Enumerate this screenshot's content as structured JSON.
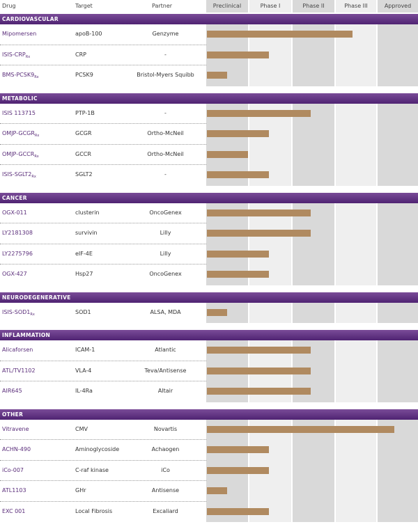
{
  "header": {
    "drug": "Drug",
    "target": "Target",
    "partner": "Partner"
  },
  "colors": {
    "section": "#5e2f80",
    "bar": "#b08a60",
    "drug_text": "#5a2d7a",
    "col_dark": "#d9d9d9",
    "col_light": "#efefef"
  },
  "chart_data": {
    "type": "bar",
    "orientation": "horizontal",
    "value_unit": "phases completed (0 = start of Preclinical, 5 = end of Approved)",
    "phases": [
      "Preclinical",
      "Phase I",
      "Phase II",
      "Phase III",
      "Approved"
    ],
    "sections": [
      {
        "title": "CARDIOVASCULAR",
        "rows": [
          {
            "drug": "Mipomersen",
            "sub": "",
            "target": "apoB-100",
            "partner": "Genzyme",
            "value": 3.5
          },
          {
            "drug": "ISIS-CRP",
            "sub": "Rx",
            "target": "CRP",
            "partner": "-",
            "value": 1.5
          },
          {
            "drug": "BMS-PCSK9",
            "sub": "Rx",
            "target": "PCSK9",
            "partner": "Bristol-Myers Squibb",
            "value": 0.5
          }
        ]
      },
      {
        "title": "METABOLIC",
        "rows": [
          {
            "drug": "ISIS 113715",
            "sub": "",
            "target": "PTP-1B",
            "partner": "-",
            "value": 2.5
          },
          {
            "drug": "OMJP-GCGR",
            "sub": "Rx",
            "target": "GCGR",
            "partner": "Ortho-McNeil",
            "value": 1.5
          },
          {
            "drug": "OMJP-GCCR",
            "sub": "Rx",
            "target": "GCCR",
            "partner": "Ortho-McNeil",
            "value": 1.0
          },
          {
            "drug": "ISIS-SGLT2",
            "sub": "Rx",
            "target": "SGLT2",
            "partner": "-",
            "value": 1.5
          }
        ]
      },
      {
        "title": "CANCER",
        "rows": [
          {
            "drug": "OGX-011",
            "sub": "",
            "target": "clusterin",
            "partner": "OncoGenex",
            "value": 2.5
          },
          {
            "drug": "LY2181308",
            "sub": "",
            "target": "survivin",
            "partner": "Lilly",
            "value": 2.5
          },
          {
            "drug": "LY2275796",
            "sub": "",
            "target": "eIF-4E",
            "partner": "Lilly",
            "value": 1.5
          },
          {
            "drug": "OGX-427",
            "sub": "",
            "target": "Hsp27",
            "partner": "OncoGenex",
            "value": 1.5
          }
        ]
      },
      {
        "title": "NEURODEGENERATIVE",
        "rows": [
          {
            "drug": "ISIS-SOD1",
            "sub": "Rx",
            "target": "SOD1",
            "partner": "ALSA, MDA",
            "value": 0.5
          }
        ]
      },
      {
        "title": "INFLAMMATION",
        "rows": [
          {
            "drug": "Alicaforsen",
            "sub": "",
            "target": "ICAM-1",
            "partner": "Atlantic",
            "value": 2.5
          },
          {
            "drug": "ATL/TV1102",
            "sub": "",
            "target": "VLA-4",
            "partner": "Teva/Antisense",
            "value": 2.5
          },
          {
            "drug": "AIR645",
            "sub": "",
            "target": "IL-4Ra",
            "partner": "Altair",
            "value": 2.5
          }
        ]
      },
      {
        "title": "OTHER",
        "rows": [
          {
            "drug": "Vitravene",
            "sub": "",
            "target": "CMV",
            "partner": "Novartis",
            "value": 4.5
          },
          {
            "drug": "ACHN-490",
            "sub": "",
            "target": "Aminoglycoside",
            "partner": "Achaogen",
            "value": 1.5
          },
          {
            "drug": "iCo-007",
            "sub": "",
            "target": "C-raf kinase",
            "partner": "iCo",
            "value": 1.5
          },
          {
            "drug": "ATL1103",
            "sub": "",
            "target": "GHr",
            "partner": "Antisense",
            "value": 0.5
          },
          {
            "drug": "EXC 001",
            "sub": "",
            "target": "Local Fibrosis",
            "partner": "Excaliard",
            "value": 1.5
          }
        ]
      }
    ]
  }
}
